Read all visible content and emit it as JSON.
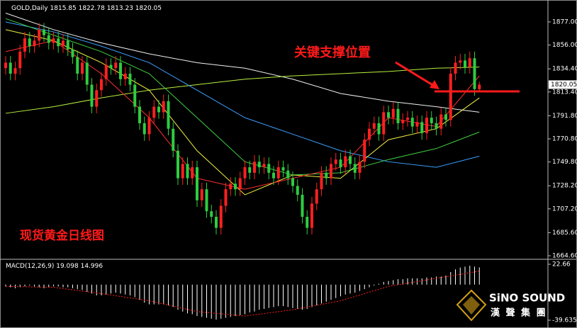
{
  "chart_data": [
    {
      "type": "candlestick",
      "title": "GOLD,Daily",
      "open": [
        1835,
        1840,
        1830,
        1835,
        1850,
        1862,
        1855,
        1860,
        1870,
        1865,
        1858,
        1862,
        1855,
        1860,
        1852,
        1845,
        1830,
        1840,
        1820,
        1800,
        1815,
        1825,
        1838,
        1835,
        1840,
        1825,
        1830,
        1820,
        1800,
        1785,
        1775,
        1790,
        1800,
        1795,
        1805,
        1780,
        1760,
        1735,
        1748,
        1735,
        1745,
        1715,
        1725,
        1705,
        1700,
        1690,
        1710,
        1725,
        1730,
        1725,
        1735,
        1745,
        1740,
        1750,
        1745,
        1748,
        1740,
        1735,
        1745,
        1742,
        1735,
        1728,
        1720,
        1700,
        1690,
        1712,
        1725,
        1740,
        1735,
        1748,
        1752,
        1745,
        1755,
        1748,
        1740,
        1750,
        1770,
        1780,
        1785,
        1775,
        1795,
        1790,
        1798,
        1785,
        1788,
        1790,
        1782,
        1786,
        1776,
        1790,
        1785,
        1780,
        1793,
        1788,
        1830,
        1840,
        1842,
        1836,
        1844,
        1815.85
      ],
      "high": [
        1846,
        1846,
        1841,
        1856,
        1868,
        1868,
        1866,
        1876,
        1876,
        1871,
        1868,
        1868,
        1866,
        1866,
        1858,
        1851,
        1846,
        1846,
        1826,
        1821,
        1831,
        1844,
        1844,
        1846,
        1846,
        1836,
        1836,
        1826,
        1806,
        1791,
        1796,
        1806,
        1806,
        1811,
        1811,
        1786,
        1766,
        1754,
        1754,
        1751,
        1751,
        1731,
        1731,
        1711,
        1706,
        1716,
        1731,
        1736,
        1736,
        1741,
        1751,
        1751,
        1756,
        1756,
        1754,
        1754,
        1746,
        1751,
        1751,
        1748,
        1741,
        1734,
        1726,
        1706,
        1718,
        1731,
        1746,
        1746,
        1754,
        1758,
        1758,
        1761,
        1761,
        1754,
        1756,
        1776,
        1786,
        1791,
        1791,
        1801,
        1801,
        1804,
        1804,
        1794,
        1796,
        1796,
        1792,
        1792,
        1796,
        1796,
        1791,
        1799,
        1799,
        1836,
        1846,
        1848,
        1848,
        1850,
        1850,
        1822.78
      ],
      "low": [
        1829,
        1824,
        1824,
        1829,
        1844,
        1849,
        1849,
        1854,
        1859,
        1852,
        1852,
        1849,
        1849,
        1846,
        1839,
        1824,
        1824,
        1814,
        1794,
        1794,
        1809,
        1819,
        1829,
        1829,
        1819,
        1819,
        1814,
        1794,
        1779,
        1769,
        1769,
        1784,
        1789,
        1789,
        1774,
        1754,
        1729,
        1729,
        1729,
        1729,
        1709,
        1709,
        1699,
        1694,
        1684,
        1684,
        1704,
        1719,
        1719,
        1719,
        1729,
        1734,
        1734,
        1739,
        1739,
        1734,
        1729,
        1729,
        1736,
        1729,
        1722,
        1714,
        1694,
        1684,
        1684,
        1706,
        1719,
        1729,
        1729,
        1742,
        1739,
        1739,
        1742,
        1734,
        1734,
        1744,
        1764,
        1774,
        1769,
        1769,
        1784,
        1784,
        1779,
        1779,
        1782,
        1776,
        1776,
        1770,
        1770,
        1779,
        1774,
        1774,
        1782,
        1782,
        1824,
        1834,
        1830,
        1830,
        1810,
        1813.23
      ],
      "close": [
        1840,
        1830,
        1835,
        1850,
        1862,
        1855,
        1860,
        1870,
        1865,
        1858,
        1862,
        1855,
        1860,
        1852,
        1845,
        1830,
        1840,
        1820,
        1800,
        1815,
        1825,
        1838,
        1835,
        1840,
        1825,
        1830,
        1820,
        1800,
        1785,
        1775,
        1790,
        1800,
        1795,
        1805,
        1780,
        1760,
        1735,
        1748,
        1735,
        1745,
        1715,
        1725,
        1705,
        1700,
        1690,
        1710,
        1725,
        1730,
        1725,
        1735,
        1745,
        1740,
        1750,
        1745,
        1748,
        1740,
        1735,
        1745,
        1742,
        1735,
        1728,
        1720,
        1700,
        1690,
        1712,
        1725,
        1740,
        1735,
        1748,
        1752,
        1745,
        1755,
        1748,
        1740,
        1750,
        1770,
        1780,
        1785,
        1775,
        1795,
        1790,
        1798,
        1785,
        1788,
        1790,
        1782,
        1786,
        1776,
        1790,
        1785,
        1780,
        1793,
        1788,
        1830,
        1840,
        1842,
        1836,
        1844,
        1816,
        1820.05
      ],
      "up_color": "#ff2020",
      "down_color": "#2ecc40",
      "ylim": [
        1661.4,
        1893.7
      ],
      "yticks": [
        {
          "value": 1877,
          "label": "1877.00"
        },
        {
          "value": 1856,
          "label": "1856.00"
        },
        {
          "value": 1834.4,
          "label": "1834.40"
        },
        {
          "value": 1813.4,
          "label": "1813.40"
        },
        {
          "value": 1791.8,
          "label": "1791.80"
        },
        {
          "value": 1770.8,
          "label": "1770.80"
        },
        {
          "value": 1749.8,
          "label": "1749.80"
        },
        {
          "value": 1728.2,
          "label": "1728.20"
        },
        {
          "value": 1707.2,
          "label": "1707.20"
        },
        {
          "value": 1685.6,
          "label": "1685.60"
        },
        {
          "value": 1664.6,
          "label": "1664.60"
        }
      ],
      "ma": {
        "x": [
          0,
          10,
          20,
          30,
          40,
          50,
          60,
          70,
          80,
          90,
          99
        ],
        "series": [
          {
            "color": "#f0f0f0",
            "values": [
              1885,
              1870,
              1858,
              1848,
              1840,
              1835,
              1825,
              1812,
              1805,
              1800,
              1795
            ]
          },
          {
            "color": "#b8f040",
            "values": [
              1794,
              1800,
              1808,
              1815,
              1820,
              1825,
              1828,
              1830,
              1832,
              1835,
              1836
            ]
          },
          {
            "color": "#3aa0ff",
            "values": [
              1877,
              1868,
              1855,
              1840,
              1815,
              1790,
              1775,
              1760,
              1750,
              1745,
              1755
            ]
          },
          {
            "color": "#40d040",
            "values": [
              1880,
              1865,
              1850,
              1830,
              1790,
              1750,
              1738,
              1740,
              1752,
              1762,
              1777
            ]
          },
          {
            "color": "#f0f040",
            "values": [
              1870,
              1860,
              1840,
              1815,
              1760,
              1720,
              1738,
              1735,
              1770,
              1780,
              1808
            ]
          },
          {
            "color": "#ff3030",
            "values": [
              1850,
              1860,
              1830,
              1790,
              1735,
              1725,
              1735,
              1745,
              1790,
              1782,
              1828
            ]
          }
        ]
      },
      "support_level": 1813.9,
      "annotation_color": "#ff1a1a",
      "annotations": [
        "关键支撑位置",
        "现货黄金日线图"
      ]
    },
    {
      "type": "macd",
      "title": "MACD(12,26,9)",
      "histogram": [
        -2,
        -3,
        -4,
        -3,
        -2,
        -1,
        -2,
        -3,
        -4,
        -3,
        -2,
        -2,
        -3,
        -3,
        -4,
        -5,
        -6,
        -8,
        -10,
        -12,
        -12,
        -11,
        -10,
        -9,
        -10,
        -11,
        -12,
        -14,
        -17,
        -20,
        -22,
        -22,
        -22,
        -22,
        -23,
        -25,
        -28,
        -30,
        -32,
        -33,
        -35,
        -36,
        -37,
        -38,
        -39,
        -38,
        -37,
        -36,
        -35,
        -34,
        -33,
        -31,
        -30,
        -28,
        -27,
        -26,
        -25,
        -24,
        -24,
        -25,
        -26,
        -27,
        -28,
        -27,
        -25,
        -23,
        -21,
        -19,
        -17,
        -15,
        -13,
        -11,
        -10,
        -9,
        -7,
        -5,
        -3,
        -1,
        1,
        3,
        4,
        5,
        6,
        6,
        7,
        7,
        7,
        7,
        8,
        8,
        9,
        9,
        10,
        14,
        17,
        19,
        20,
        21,
        20,
        19.098
      ],
      "signal_x": [
        0,
        10,
        20,
        30,
        40,
        50,
        60,
        70,
        80,
        90,
        99
      ],
      "signal": [
        -2,
        -3,
        -10,
        -18,
        -30,
        -35,
        -28,
        -18,
        -2,
        7,
        14.996
      ],
      "signal_color": "#ff2020",
      "histogram_color": "#ffffff",
      "ylim": [
        -44.37,
        27.4
      ],
      "yticks": [
        22.66,
        -39.635
      ]
    }
  ],
  "watermark": {
    "brand": "SiNO SOUND",
    "chinese": "漢 聲 集 團"
  }
}
